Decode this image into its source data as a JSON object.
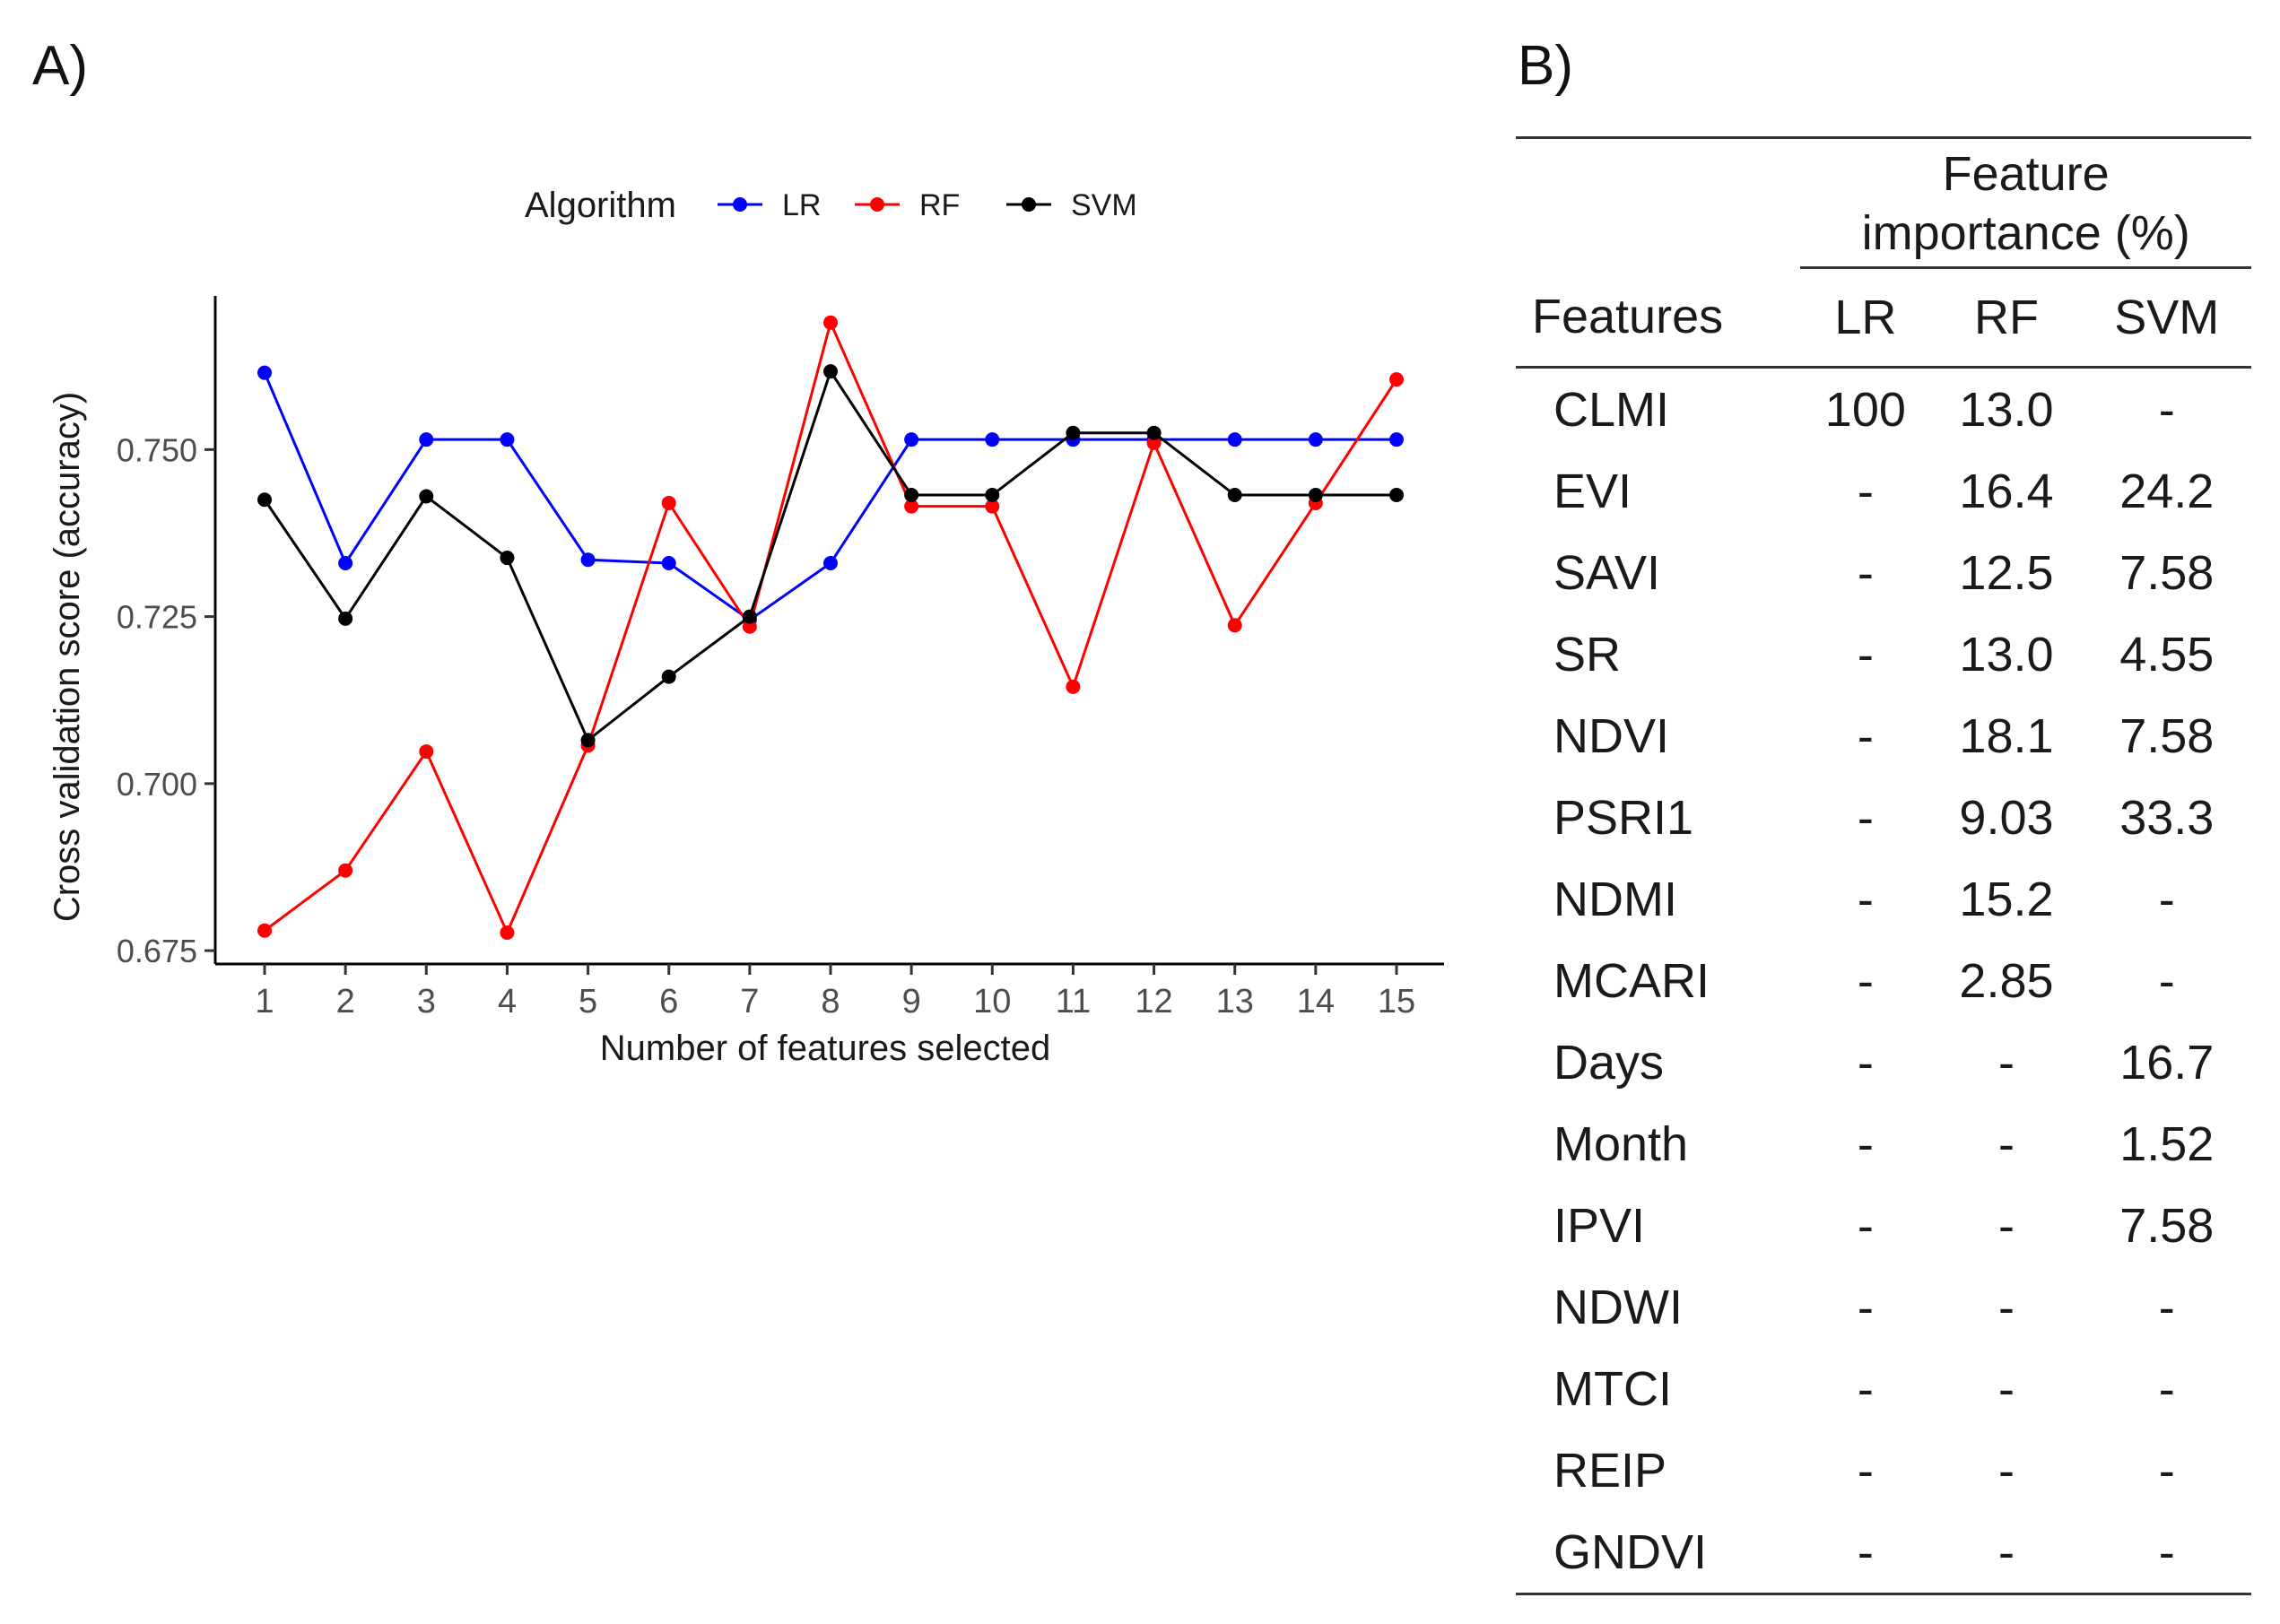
{
  "panel_a_label": "A)",
  "panel_b_label": "B)",
  "chart_data": {
    "type": "line",
    "title": "",
    "legend_title": "Algorithm",
    "legend_position": "top",
    "xlabel": "Number of features selected",
    "ylabel": "Cross validation score (accuracy)",
    "x": [
      1,
      2,
      3,
      4,
      5,
      6,
      7,
      8,
      9,
      10,
      11,
      12,
      13,
      14,
      15
    ],
    "x_ticks": [
      "1",
      "2",
      "3",
      "4",
      "5",
      "6",
      "7",
      "8",
      "9",
      "10",
      "11",
      "12",
      "13",
      "14",
      "15"
    ],
    "y_ticks": [
      0.675,
      0.7,
      0.725,
      0.75
    ],
    "y_tick_labels": [
      "0.675",
      "0.700",
      "0.725",
      "0.750"
    ],
    "ylim": [
      0.673,
      0.773
    ],
    "grid": false,
    "series": [
      {
        "name": "LR",
        "color": "#0000ff",
        "values": [
          0.7615,
          0.733,
          0.7515,
          0.7515,
          0.7335,
          0.733,
          0.7245,
          0.733,
          0.7515,
          0.7515,
          0.7515,
          0.7515,
          0.7515,
          0.7515,
          0.7515
        ]
      },
      {
        "name": "RF",
        "color": "#ff0000",
        "values": [
          0.678,
          0.687,
          0.7048,
          0.6777,
          0.7057,
          0.742,
          0.7235,
          0.769,
          0.7415,
          0.7415,
          0.7145,
          0.751,
          0.7237,
          0.742,
          0.7605
        ]
      },
      {
        "name": "SVM",
        "color": "#000000",
        "values": [
          0.7425,
          0.7247,
          0.743,
          0.7338,
          0.7065,
          0.716,
          0.725,
          0.7617,
          0.7432,
          0.7432,
          0.7525,
          0.7525,
          0.7432,
          0.7432,
          0.7432
        ]
      }
    ]
  },
  "table": {
    "group_header_line1": "Feature",
    "group_header_line2": "importance (%)",
    "col_features": "Features",
    "col_lr": "LR",
    "col_rf": "RF",
    "col_svm": "SVM",
    "rows": [
      {
        "feature": "CLMI",
        "lr": "100",
        "rf": "13.0",
        "svm": "-"
      },
      {
        "feature": "EVI",
        "lr": "-",
        "rf": "16.4",
        "svm": "24.2"
      },
      {
        "feature": "SAVI",
        "lr": "-",
        "rf": "12.5",
        "svm": "7.58"
      },
      {
        "feature": "SR",
        "lr": "-",
        "rf": "13.0",
        "svm": "4.55"
      },
      {
        "feature": "NDVI",
        "lr": "-",
        "rf": "18.1",
        "svm": "7.58"
      },
      {
        "feature": "PSRI1",
        "lr": "-",
        "rf": "9.03",
        "svm": "33.3"
      },
      {
        "feature": "NDMI",
        "lr": "-",
        "rf": "15.2",
        "svm": "-"
      },
      {
        "feature": "MCARI",
        "lr": "-",
        "rf": "2.85",
        "svm": "-"
      },
      {
        "feature": "Days",
        "lr": "-",
        "rf": "-",
        "svm": "16.7"
      },
      {
        "feature": "Month",
        "lr": "-",
        "rf": "-",
        "svm": "1.52"
      },
      {
        "feature": "IPVI",
        "lr": "-",
        "rf": "-",
        "svm": "7.58"
      },
      {
        "feature": "NDWI",
        "lr": "-",
        "rf": "-",
        "svm": "-"
      },
      {
        "feature": "MTCI",
        "lr": "-",
        "rf": "-",
        "svm": "-"
      },
      {
        "feature": "REIP",
        "lr": "-",
        "rf": "-",
        "svm": "-"
      },
      {
        "feature": "GNDVI",
        "lr": "-",
        "rf": "-",
        "svm": "-"
      }
    ]
  }
}
